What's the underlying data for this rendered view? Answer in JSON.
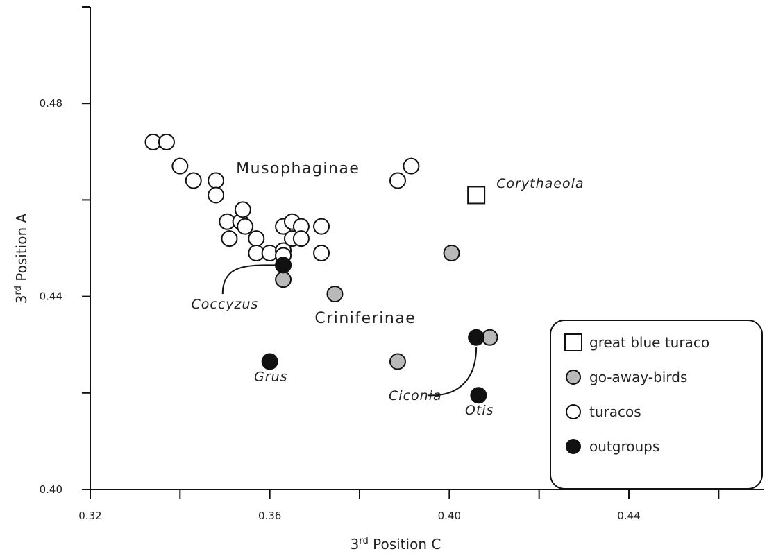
{
  "chart_data": {
    "type": "scatter",
    "title": "",
    "xlabel": {
      "prefix": "3",
      "sup": "rd",
      "rest": " Position C"
    },
    "ylabel": {
      "prefix": "3",
      "sup": "rd",
      "rest": " Position A"
    },
    "xlim": [
      0.32,
      0.47
    ],
    "ylim": [
      0.4,
      0.5
    ],
    "x_ticks": [
      0.32,
      0.34,
      0.36,
      0.38,
      0.4,
      0.42,
      0.44,
      0.46
    ],
    "x_tick_labels": [
      {
        "value": 0.32,
        "label": "0.32"
      },
      {
        "value": 0.36,
        "label": "0.36"
      },
      {
        "value": 0.4,
        "label": "0.40"
      },
      {
        "value": 0.44,
        "label": "0.44"
      }
    ],
    "y_ticks": [
      0.4,
      0.42,
      0.44,
      0.46,
      0.48,
      0.5
    ],
    "y_tick_labels": [
      {
        "value": 0.4,
        "label": "0.40"
      },
      {
        "value": 0.44,
        "label": "0.44"
      },
      {
        "value": 0.48,
        "label": "0.48"
      }
    ],
    "grid": false,
    "legend_position": "bottom-right",
    "colors": {
      "turacos": "#ffffff",
      "go-away-birds": "#b9b9b9",
      "outgroups": "#111111",
      "stroke": "#111111"
    },
    "series": [
      {
        "name": "great blue turaco",
        "marker": "square",
        "points": [
          {
            "x": 0.406,
            "y": 0.461
          }
        ]
      },
      {
        "name": "go-away-birds",
        "marker": "circle-gray",
        "points": [
          {
            "x": 0.363,
            "y": 0.4435
          },
          {
            "x": 0.3745,
            "y": 0.4405
          },
          {
            "x": 0.4005,
            "y": 0.449
          },
          {
            "x": 0.3885,
            "y": 0.4265
          },
          {
            "x": 0.409,
            "y": 0.4315
          }
        ]
      },
      {
        "name": "turacos",
        "marker": "circle-white",
        "points": [
          {
            "x": 0.334,
            "y": 0.472
          },
          {
            "x": 0.337,
            "y": 0.472
          },
          {
            "x": 0.34,
            "y": 0.467
          },
          {
            "x": 0.343,
            "y": 0.464
          },
          {
            "x": 0.348,
            "y": 0.464
          },
          {
            "x": 0.348,
            "y": 0.461
          },
          {
            "x": 0.3505,
            "y": 0.4555
          },
          {
            "x": 0.351,
            "y": 0.452
          },
          {
            "x": 0.3535,
            "y": 0.4555
          },
          {
            "x": 0.354,
            "y": 0.458
          },
          {
            "x": 0.3545,
            "y": 0.4545
          },
          {
            "x": 0.357,
            "y": 0.452
          },
          {
            "x": 0.357,
            "y": 0.449
          },
          {
            "x": 0.36,
            "y": 0.449
          },
          {
            "x": 0.363,
            "y": 0.4545
          },
          {
            "x": 0.363,
            "y": 0.4495
          },
          {
            "x": 0.363,
            "y": 0.4485
          },
          {
            "x": 0.365,
            "y": 0.4555
          },
          {
            "x": 0.365,
            "y": 0.452
          },
          {
            "x": 0.367,
            "y": 0.4545
          },
          {
            "x": 0.367,
            "y": 0.452
          },
          {
            "x": 0.3715,
            "y": 0.4545
          },
          {
            "x": 0.3715,
            "y": 0.449
          },
          {
            "x": 0.3885,
            "y": 0.464
          },
          {
            "x": 0.3915,
            "y": 0.467
          }
        ]
      },
      {
        "name": "outgroups",
        "marker": "circle-black",
        "points": [
          {
            "x": 0.363,
            "y": 0.4465
          },
          {
            "x": 0.36,
            "y": 0.4265
          },
          {
            "x": 0.406,
            "y": 0.4315
          },
          {
            "x": 0.4065,
            "y": 0.4195
          }
        ]
      }
    ],
    "annotations": {
      "group_labels": [
        {
          "text": "Musophaginae",
          "x": 0.3525,
          "y": 0.4655
        },
        {
          "text": "Criniferinae",
          "x": 0.37,
          "y": 0.4345
        }
      ],
      "taxon_labels": [
        {
          "text": "Corythaeola",
          "x": 0.4105,
          "y": 0.4625,
          "anchor": "start"
        },
        {
          "text": "Coccyzus",
          "x": 0.3425,
          "y": 0.4375,
          "anchor": "start"
        },
        {
          "text": "Grus",
          "x": 0.3565,
          "y": 0.4225,
          "anchor": "start"
        },
        {
          "text": "Ciconia",
          "x": 0.3865,
          "y": 0.4185,
          "anchor": "start"
        },
        {
          "text": "Otis",
          "x": 0.4035,
          "y": 0.4155,
          "anchor": "start"
        }
      ],
      "leaders": [
        {
          "from": [
            0.3495,
            "0.4405"
          ],
          "to": [
            0.3615,
            0.4465
          ]
        },
        {
          "from": [
            0.3953,
            "0.4195"
          ],
          "to": [
            0.406,
            0.4295
          ]
        }
      ]
    },
    "legend": {
      "items": [
        {
          "label": "great blue turaco",
          "marker": "square"
        },
        {
          "label": "go-away-birds",
          "marker": "circle-gray"
        },
        {
          "label": "turacos",
          "marker": "circle-white"
        },
        {
          "label": "outgroups",
          "marker": "circle-black"
        }
      ]
    }
  }
}
